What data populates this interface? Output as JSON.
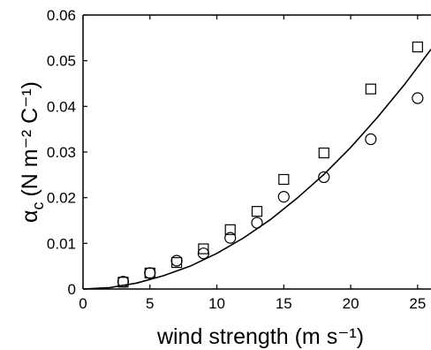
{
  "chart_data": {
    "type": "scatter",
    "title": "",
    "xlabel": "wind strength (m s⁻¹)",
    "ylabel": {
      "symbol": "α",
      "subscript": "c",
      "units": "(N m⁻² C⁻¹)"
    },
    "xlim": [
      0,
      26
    ],
    "ylim": [
      0,
      0.06
    ],
    "x_ticks": [
      0,
      5,
      10,
      15,
      20,
      25
    ],
    "x_tick_labels": [
      "0",
      "5",
      "10",
      "15",
      "20",
      "25"
    ],
    "y_ticks": [
      0,
      0.01,
      0.02,
      0.03,
      0.04,
      0.05,
      0.06
    ],
    "y_tick_labels": [
      "0",
      "0.01",
      "0.02",
      "0.03",
      "0.04",
      "0.05",
      "0.06"
    ],
    "grid": false,
    "legend": false,
    "series": [
      {
        "marker": "square",
        "x": [
          3,
          5,
          7,
          9,
          11,
          13,
          15,
          18,
          21.5,
          25
        ],
        "y": [
          0.0015,
          0.0035,
          0.0058,
          0.0088,
          0.013,
          0.017,
          0.024,
          0.0298,
          0.0438,
          0.053
        ]
      },
      {
        "marker": "circle",
        "x": [
          3,
          5,
          7,
          9,
          11,
          13,
          15,
          18,
          21.5,
          25
        ],
        "y": [
          0.0016,
          0.0035,
          0.0062,
          0.0078,
          0.0112,
          0.0145,
          0.0202,
          0.0245,
          0.0328,
          0.0418
        ]
      },
      {
        "marker": "line",
        "x": [
          0,
          2,
          4,
          6,
          8,
          10,
          12,
          14,
          16,
          18,
          20,
          22,
          24,
          26
        ],
        "y": [
          0,
          0.0003,
          0.0013,
          0.0029,
          0.005,
          0.0078,
          0.0112,
          0.0152,
          0.0199,
          0.0251,
          0.031,
          0.0376,
          0.0447,
          0.0525
        ]
      }
    ]
  }
}
